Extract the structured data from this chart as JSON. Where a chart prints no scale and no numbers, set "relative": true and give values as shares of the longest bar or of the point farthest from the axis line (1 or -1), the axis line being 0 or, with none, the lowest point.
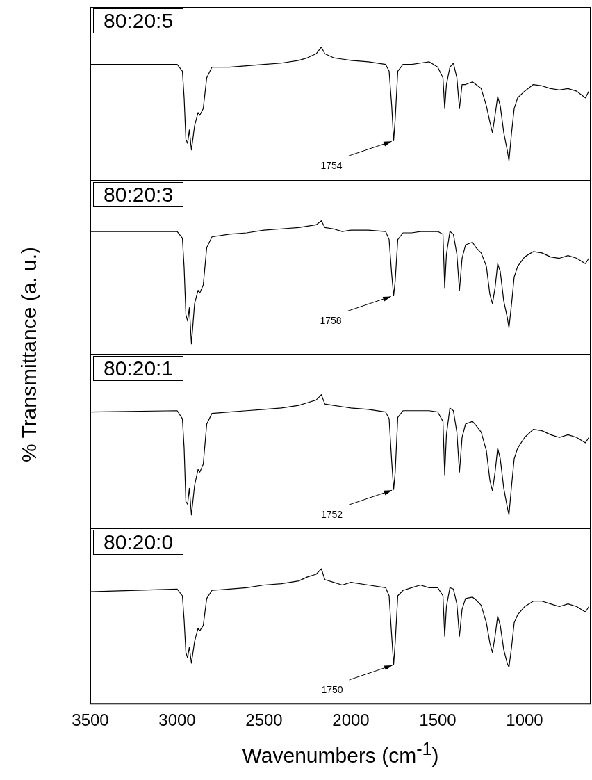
{
  "chart_data": [
    {
      "type": "line",
      "title": "80:20:5",
      "ylabel": "% Transmittance (a. u.)",
      "relative": true,
      "color": "#000000",
      "xlim": [
        3500,
        620
      ],
      "tick_labels": false,
      "annotations": [
        {
          "text": "1754",
          "x": 1754,
          "y": 0.3
        }
      ],
      "x": [
        3500,
        3000,
        2970,
        2960,
        2950,
        2940,
        2930,
        2918,
        2900,
        2880,
        2870,
        2850,
        2830,
        2800,
        2700,
        2600,
        2500,
        2400,
        2300,
        2250,
        2200,
        2170,
        2150,
        2100,
        2050,
        2000,
        1900,
        1800,
        1780,
        1765,
        1754,
        1745,
        1730,
        1700,
        1650,
        1600,
        1550,
        1500,
        1470,
        1460,
        1450,
        1430,
        1410,
        1390,
        1375,
        1360,
        1340,
        1300,
        1280,
        1250,
        1220,
        1200,
        1185,
        1170,
        1155,
        1140,
        1120,
        1100,
        1090,
        1075,
        1060,
        1040,
        1000,
        950,
        900,
        850,
        800,
        750,
        700,
        650,
        630
      ],
      "values": [
        0.87,
        0.87,
        0.82,
        0.62,
        0.31,
        0.28,
        0.38,
        0.23,
        0.41,
        0.51,
        0.49,
        0.54,
        0.77,
        0.85,
        0.85,
        0.86,
        0.87,
        0.88,
        0.9,
        0.92,
        0.95,
        1,
        0.95,
        0.92,
        0.91,
        0.9,
        0.89,
        0.87,
        0.82,
        0.56,
        0.3,
        0.46,
        0.82,
        0.87,
        0.87,
        0.88,
        0.89,
        0.85,
        0.77,
        0.54,
        0.72,
        0.85,
        0.88,
        0.77,
        0.54,
        0.72,
        0.72,
        0.74,
        0.72,
        0.69,
        0.56,
        0.44,
        0.36,
        0.49,
        0.63,
        0.56,
        0.36,
        0.23,
        0.15,
        0.36,
        0.54,
        0.62,
        0.67,
        0.72,
        0.71,
        0.69,
        0.68,
        0.69,
        0.67,
        0.62,
        0.67
      ]
    },
    {
      "type": "line",
      "title": "80:20:3",
      "relative": true,
      "color": "#000000",
      "xlim": [
        3500,
        620
      ],
      "tick_labels": false,
      "annotations": [
        {
          "text": "1758",
          "x": 1758,
          "y": 0.44
        }
      ],
      "x": [
        3500,
        3000,
        2970,
        2960,
        2950,
        2940,
        2930,
        2918,
        2900,
        2880,
        2870,
        2850,
        2830,
        2800,
        2700,
        2600,
        2500,
        2400,
        2300,
        2250,
        2200,
        2170,
        2150,
        2100,
        2050,
        2000,
        1900,
        1800,
        1780,
        1765,
        1754,
        1745,
        1730,
        1700,
        1650,
        1600,
        1550,
        1500,
        1470,
        1460,
        1450,
        1430,
        1410,
        1390,
        1375,
        1360,
        1340,
        1300,
        1280,
        1250,
        1220,
        1200,
        1185,
        1170,
        1155,
        1140,
        1120,
        1100,
        1090,
        1075,
        1060,
        1040,
        1000,
        950,
        900,
        850,
        800,
        750,
        700,
        650,
        630
      ],
      "values": [
        0.92,
        0.92,
        0.87,
        0.65,
        0.3,
        0.25,
        0.35,
        0.08,
        0.38,
        0.48,
        0.46,
        0.52,
        0.8,
        0.88,
        0.9,
        0.91,
        0.93,
        0.94,
        0.95,
        0.96,
        0.97,
        1,
        0.95,
        0.94,
        0.92,
        0.93,
        0.93,
        0.92,
        0.86,
        0.6,
        0.44,
        0.55,
        0.86,
        0.91,
        0.91,
        0.92,
        0.92,
        0.92,
        0.9,
        0.5,
        0.75,
        0.92,
        0.9,
        0.75,
        0.48,
        0.72,
        0.82,
        0.84,
        0.8,
        0.76,
        0.66,
        0.45,
        0.38,
        0.5,
        0.68,
        0.62,
        0.4,
        0.28,
        0.2,
        0.38,
        0.58,
        0.66,
        0.73,
        0.77,
        0.76,
        0.73,
        0.72,
        0.74,
        0.72,
        0.68,
        0.72
      ]
    },
    {
      "type": "line",
      "title": "80:20:1",
      "relative": true,
      "color": "#000000",
      "xlim": [
        3500,
        620
      ],
      "tick_labels": false,
      "annotations": [
        {
          "text": "1752",
          "x": 1752,
          "y": 0.29
        }
      ],
      "x": [
        3500,
        3000,
        2970,
        2960,
        2950,
        2940,
        2930,
        2918,
        2900,
        2880,
        2870,
        2850,
        2830,
        2800,
        2700,
        2600,
        2500,
        2400,
        2300,
        2250,
        2200,
        2170,
        2150,
        2100,
        2050,
        2000,
        1900,
        1800,
        1780,
        1765,
        1754,
        1745,
        1730,
        1700,
        1650,
        1600,
        1550,
        1500,
        1470,
        1460,
        1450,
        1430,
        1410,
        1390,
        1375,
        1360,
        1340,
        1300,
        1280,
        1250,
        1220,
        1200,
        1185,
        1170,
        1155,
        1140,
        1120,
        1100,
        1090,
        1075,
        1060,
        1040,
        1000,
        950,
        900,
        850,
        800,
        750,
        700,
        650,
        630
      ],
      "values": [
        0.87,
        0.88,
        0.82,
        0.6,
        0.2,
        0.18,
        0.3,
        0.1,
        0.32,
        0.44,
        0.42,
        0.48,
        0.78,
        0.86,
        0.87,
        0.88,
        0.89,
        0.9,
        0.92,
        0.94,
        0.96,
        1,
        0.93,
        0.92,
        0.91,
        0.9,
        0.89,
        0.87,
        0.82,
        0.5,
        0.29,
        0.42,
        0.83,
        0.88,
        0.88,
        0.88,
        0.88,
        0.87,
        0.8,
        0.4,
        0.7,
        0.9,
        0.88,
        0.72,
        0.42,
        0.68,
        0.78,
        0.8,
        0.77,
        0.72,
        0.58,
        0.36,
        0.28,
        0.42,
        0.6,
        0.52,
        0.3,
        0.16,
        0.1,
        0.32,
        0.52,
        0.6,
        0.68,
        0.74,
        0.73,
        0.7,
        0.68,
        0.7,
        0.68,
        0.64,
        0.68
      ]
    },
    {
      "type": "line",
      "title": "80:20:0",
      "xlabel": "Wavenumbers (cm$^{-1}$)",
      "relative": true,
      "color": "#000000",
      "xlim": [
        3500,
        620
      ],
      "xticks": [
        3500,
        3000,
        2500,
        2000,
        1500,
        1000
      ],
      "tick_labels": "x",
      "annotations": [
        {
          "text": "1750",
          "x": 1750,
          "y": 0.29
        }
      ],
      "x": [
        3500,
        3000,
        2970,
        2960,
        2950,
        2940,
        2930,
        2918,
        2900,
        2880,
        2870,
        2850,
        2830,
        2800,
        2700,
        2600,
        2500,
        2400,
        2300,
        2250,
        2200,
        2170,
        2150,
        2100,
        2050,
        2000,
        1900,
        1800,
        1780,
        1765,
        1754,
        1745,
        1730,
        1700,
        1650,
        1600,
        1550,
        1500,
        1470,
        1460,
        1450,
        1430,
        1410,
        1390,
        1375,
        1360,
        1340,
        1300,
        1280,
        1250,
        1220,
        1200,
        1185,
        1170,
        1155,
        1140,
        1120,
        1100,
        1090,
        1075,
        1060,
        1040,
        1000,
        950,
        900,
        850,
        800,
        750,
        700,
        650,
        630
      ],
      "values": [
        0.83,
        0.85,
        0.8,
        0.62,
        0.38,
        0.34,
        0.42,
        0.3,
        0.46,
        0.56,
        0.54,
        0.58,
        0.78,
        0.84,
        0.85,
        0.86,
        0.88,
        0.89,
        0.91,
        0.94,
        0.96,
        1,
        0.92,
        0.9,
        0.88,
        0.9,
        0.88,
        0.86,
        0.8,
        0.5,
        0.29,
        0.45,
        0.8,
        0.84,
        0.86,
        0.88,
        0.86,
        0.86,
        0.8,
        0.5,
        0.72,
        0.86,
        0.85,
        0.74,
        0.5,
        0.7,
        0.78,
        0.79,
        0.77,
        0.73,
        0.6,
        0.45,
        0.38,
        0.5,
        0.65,
        0.58,
        0.4,
        0.3,
        0.27,
        0.42,
        0.6,
        0.66,
        0.72,
        0.76,
        0.76,
        0.74,
        0.72,
        0.74,
        0.72,
        0.68,
        0.72
      ]
    }
  ]
}
